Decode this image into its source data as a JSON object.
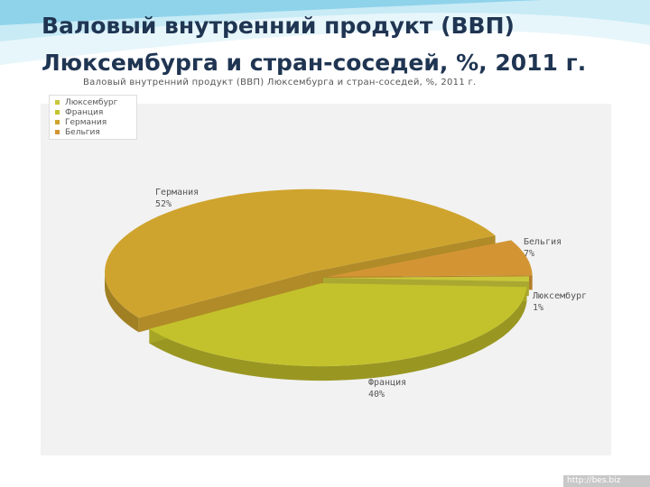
{
  "slide": {
    "title": "Валовый внутренний продукт (ВВП) Люксембурга и стран-соседей, %, 2011 г.",
    "watermark": "http://bes.biz"
  },
  "chart_data": {
    "type": "pie",
    "title": "Валовый внутренний продукт (ВВП) Люксембурга и стран-соседей, %, 2011 г.",
    "legend_position": "top-left",
    "categories": [
      "Люксембург",
      "Франция",
      "Германия",
      "Бельгия"
    ],
    "values": [
      1,
      40,
      52,
      7
    ],
    "colors": [
      "#c8c63a",
      "#c4c22c",
      "#cfa42e",
      "#d39534"
    ],
    "value_labels": [
      "1%",
      "40%",
      "52%",
      "7%"
    ],
    "slice_labels": [
      {
        "name": "Люксембург",
        "value": "1%"
      },
      {
        "name": "Франция",
        "value": "40%"
      },
      {
        "name": "Германия",
        "value": "52%"
      },
      {
        "name": "Бельгия",
        "value": "7%"
      }
    ]
  }
}
